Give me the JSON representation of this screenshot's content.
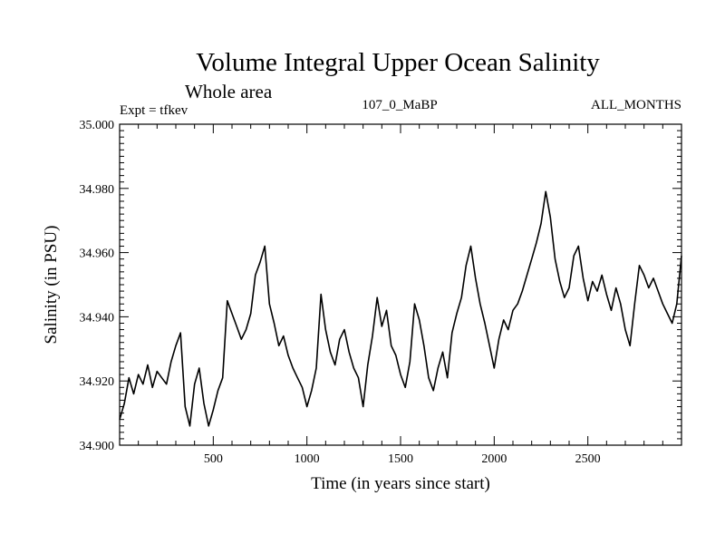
{
  "chart_data": {
    "type": "line",
    "title": "Volume Integral Upper Ocean Salinity",
    "subtitle": "Whole area",
    "header_left": "Expt = tfkev",
    "header_center": "107_0_MaBP",
    "header_right": "ALL_MONTHS",
    "xlabel": "Time (in years since start)",
    "ylabel": "Salinity (in PSU)",
    "xlim": [
      0,
      3000
    ],
    "ylim": [
      34.9,
      35.0
    ],
    "x_ticks": [
      500,
      1000,
      1500,
      2000,
      2500
    ],
    "y_ticks": [
      "34.900",
      "34.920",
      "34.940",
      "34.960",
      "34.980",
      "35.000"
    ],
    "grid": false,
    "line_color": "#000000",
    "series": [
      {
        "x": [
          0,
          25,
          50,
          75,
          100,
          125,
          150,
          175,
          200,
          225,
          250,
          275,
          300,
          325,
          350,
          375,
          400,
          425,
          450,
          475,
          500,
          525,
          550,
          575,
          600,
          625,
          650,
          675,
          700,
          725,
          750,
          775,
          800,
          825,
          850,
          875,
          900,
          925,
          950,
          975,
          1000,
          1025,
          1050,
          1075,
          1100,
          1125,
          1150,
          1175,
          1200,
          1225,
          1250,
          1275,
          1300,
          1325,
          1350,
          1375,
          1400,
          1425,
          1450,
          1475,
          1500,
          1525,
          1550,
          1575,
          1600,
          1625,
          1650,
          1675,
          1700,
          1725,
          1750,
          1775,
          1800,
          1825,
          1850,
          1875,
          1900,
          1925,
          1950,
          1975,
          2000,
          2025,
          2050,
          2075,
          2100,
          2125,
          2150,
          2175,
          2200,
          2225,
          2250,
          2275,
          2300,
          2325,
          2350,
          2375,
          2400,
          2425,
          2450,
          2475,
          2500,
          2525,
          2550,
          2575,
          2600,
          2625,
          2650,
          2675,
          2700,
          2725,
          2750,
          2775,
          2800,
          2825,
          2850,
          2875,
          2900,
          2925,
          2950,
          2975,
          3000
        ],
        "values": [
          34.908,
          34.913,
          34.921,
          34.916,
          34.922,
          34.919,
          34.925,
          34.918,
          34.923,
          34.921,
          34.919,
          34.926,
          34.931,
          34.935,
          34.912,
          34.906,
          34.919,
          34.924,
          34.913,
          34.906,
          34.911,
          34.917,
          34.921,
          34.945,
          34.941,
          34.937,
          34.933,
          34.936,
          34.941,
          34.953,
          34.957,
          34.962,
          34.944,
          34.938,
          34.931,
          34.934,
          34.928,
          34.924,
          34.921,
          34.918,
          34.912,
          34.917,
          34.924,
          34.947,
          34.936,
          34.929,
          34.925,
          34.933,
          34.936,
          34.929,
          34.924,
          34.921,
          34.912,
          34.925,
          34.934,
          34.946,
          34.937,
          34.942,
          34.931,
          34.928,
          34.922,
          34.918,
          34.926,
          34.944,
          34.939,
          34.931,
          34.921,
          34.917,
          34.924,
          34.929,
          34.921,
          34.935,
          34.941,
          34.946,
          34.956,
          34.962,
          34.952,
          34.944,
          34.938,
          34.931,
          34.924,
          34.933,
          34.939,
          34.936,
          34.942,
          34.944,
          34.948,
          34.953,
          34.958,
          34.963,
          34.969,
          34.979,
          34.971,
          34.958,
          34.951,
          34.946,
          34.949,
          34.959,
          34.962,
          34.952,
          34.945,
          34.951,
          34.948,
          34.953,
          34.947,
          34.942,
          34.949,
          34.944,
          34.936,
          34.931,
          34.944,
          34.956,
          34.953,
          34.949,
          34.952,
          34.948,
          34.944,
          34.941,
          34.938,
          34.944,
          34.959
        ]
      }
    ]
  }
}
